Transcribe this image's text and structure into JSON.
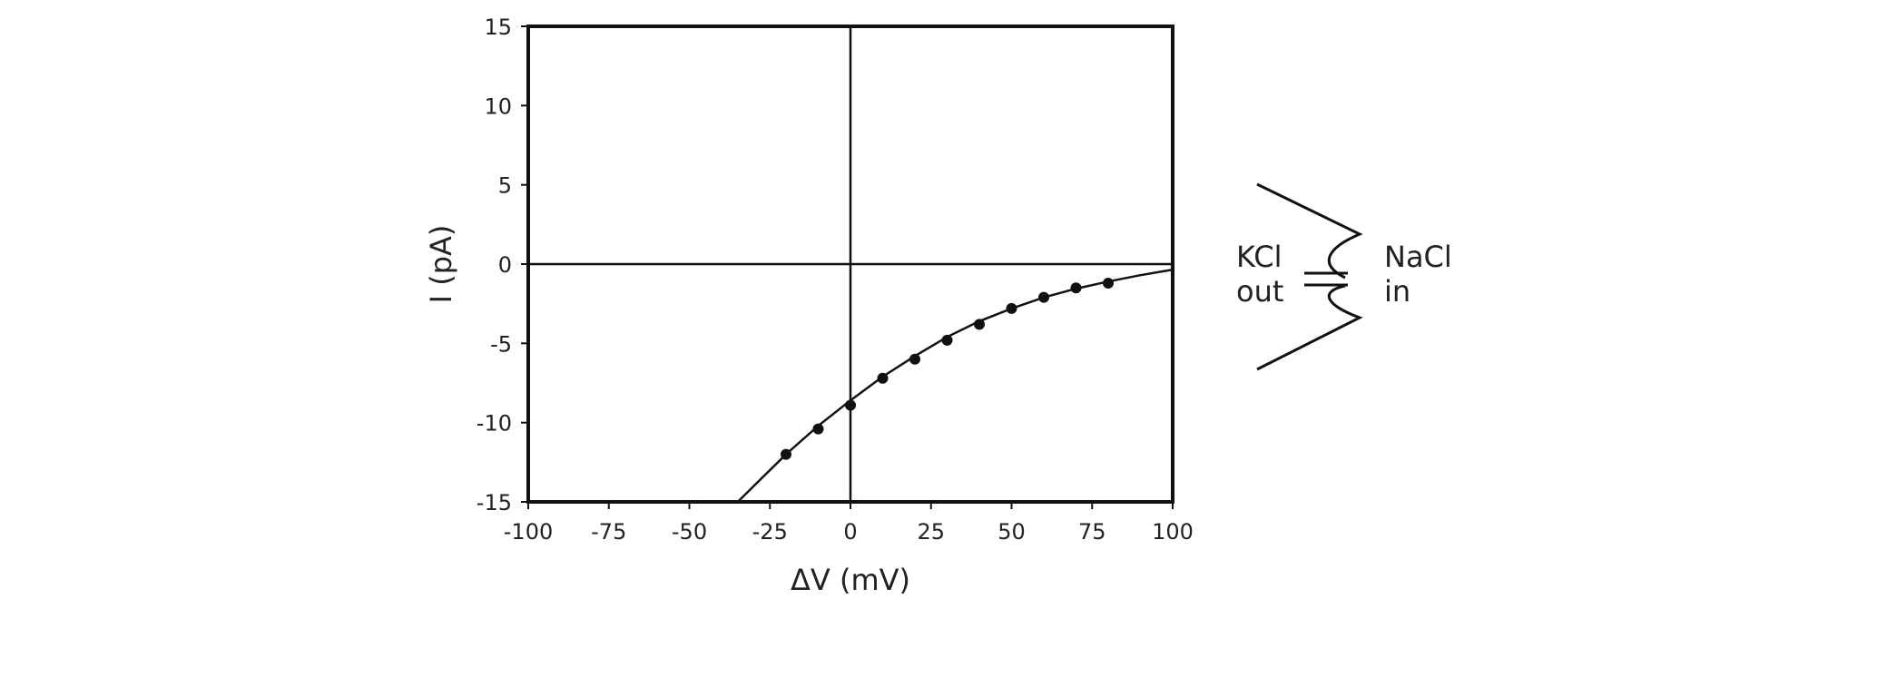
{
  "chart_data": {
    "type": "scatter",
    "xlabel": "ΔV (mV)",
    "ylabel": "I (pA)",
    "xlim": [
      -100,
      100
    ],
    "ylim": [
      -15,
      15
    ],
    "xticks": [
      -100,
      -75,
      -50,
      -25,
      0,
      25,
      50,
      75,
      100
    ],
    "yticks": [
      15,
      10,
      5,
      0,
      -5,
      -10,
      -15
    ],
    "grid": false,
    "series": [
      {
        "kind": "points",
        "x": [
          -20,
          -10,
          0,
          10,
          20,
          30,
          40,
          50,
          60,
          70,
          80
        ],
        "y": [
          -12.0,
          -10.4,
          -8.9,
          -7.2,
          -6.0,
          -4.8,
          -3.8,
          -2.8,
          -2.1,
          -1.5,
          -1.2
        ]
      },
      {
        "kind": "fit-curve",
        "x": [
          -35,
          -30,
          -20,
          -10,
          0,
          10,
          20,
          30,
          40,
          50,
          60,
          70,
          80,
          90,
          100
        ],
        "y": [
          -15.0,
          -14.0,
          -12.0,
          -10.2,
          -8.6,
          -7.1,
          -5.8,
          -4.6,
          -3.6,
          -2.8,
          -2.1,
          -1.55,
          -1.1,
          -0.7,
          -0.35
        ]
      }
    ]
  },
  "diagram": {
    "left_label_line1": "KCl",
    "left_label_line2": "out",
    "right_label_line1": "NaCl",
    "right_label_line2": "in"
  }
}
